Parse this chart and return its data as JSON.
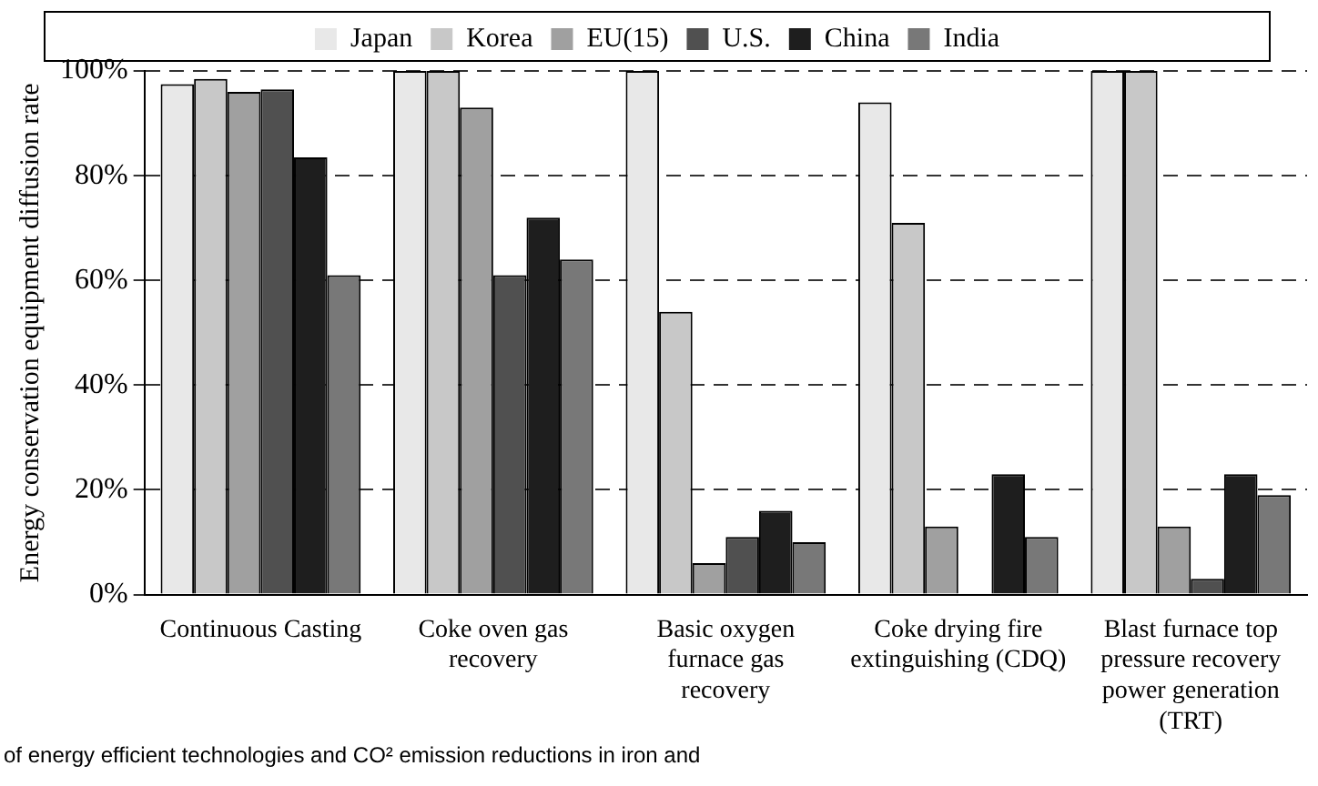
{
  "chart_data": {
    "type": "bar",
    "ylabel": "Energy conservation equipment diffusion rate",
    "categories": [
      "Continuous Casting",
      "Coke oven gas recovery",
      "Basic oxygen furnace gas recovery",
      "Coke drying fire extinguishing (CDQ)",
      "Blast furnace top pressure recovery power generation (TRT)"
    ],
    "series": [
      {
        "name": "Japan",
        "color": "#e8e8e8",
        "values": [
          97.5,
          100,
          100,
          94,
          100
        ]
      },
      {
        "name": "Korea",
        "color": "#c8c8c8",
        "values": [
          98.5,
          100,
          54,
          71,
          100
        ]
      },
      {
        "name": "EU(15)",
        "color": "#a0a0a0",
        "values": [
          96,
          93,
          6,
          13,
          13
        ]
      },
      {
        "name": "U.S.",
        "color": "#505050",
        "values": [
          96.5,
          61,
          11,
          null,
          3
        ]
      },
      {
        "name": "China",
        "color": "#1e1e1e",
        "values": [
          83.5,
          72,
          16,
          23,
          23
        ]
      },
      {
        "name": "India",
        "color": "#787878",
        "values": [
          61,
          64,
          10,
          11,
          19
        ]
      }
    ],
    "ylim": [
      0,
      100
    ],
    "yticks": [
      {
        "value": 0,
        "label": "0%"
      },
      {
        "value": 20,
        "label": "20%"
      },
      {
        "value": 40,
        "label": "40%"
      },
      {
        "value": 60,
        "label": "60%"
      },
      {
        "value": 80,
        "label": "80%"
      },
      {
        "value": 100,
        "label": "100%"
      }
    ],
    "grid": "y",
    "legend": "top",
    "annotations": [
      "of energy efficient technologies and CO² emission reductions in iron and"
    ]
  }
}
